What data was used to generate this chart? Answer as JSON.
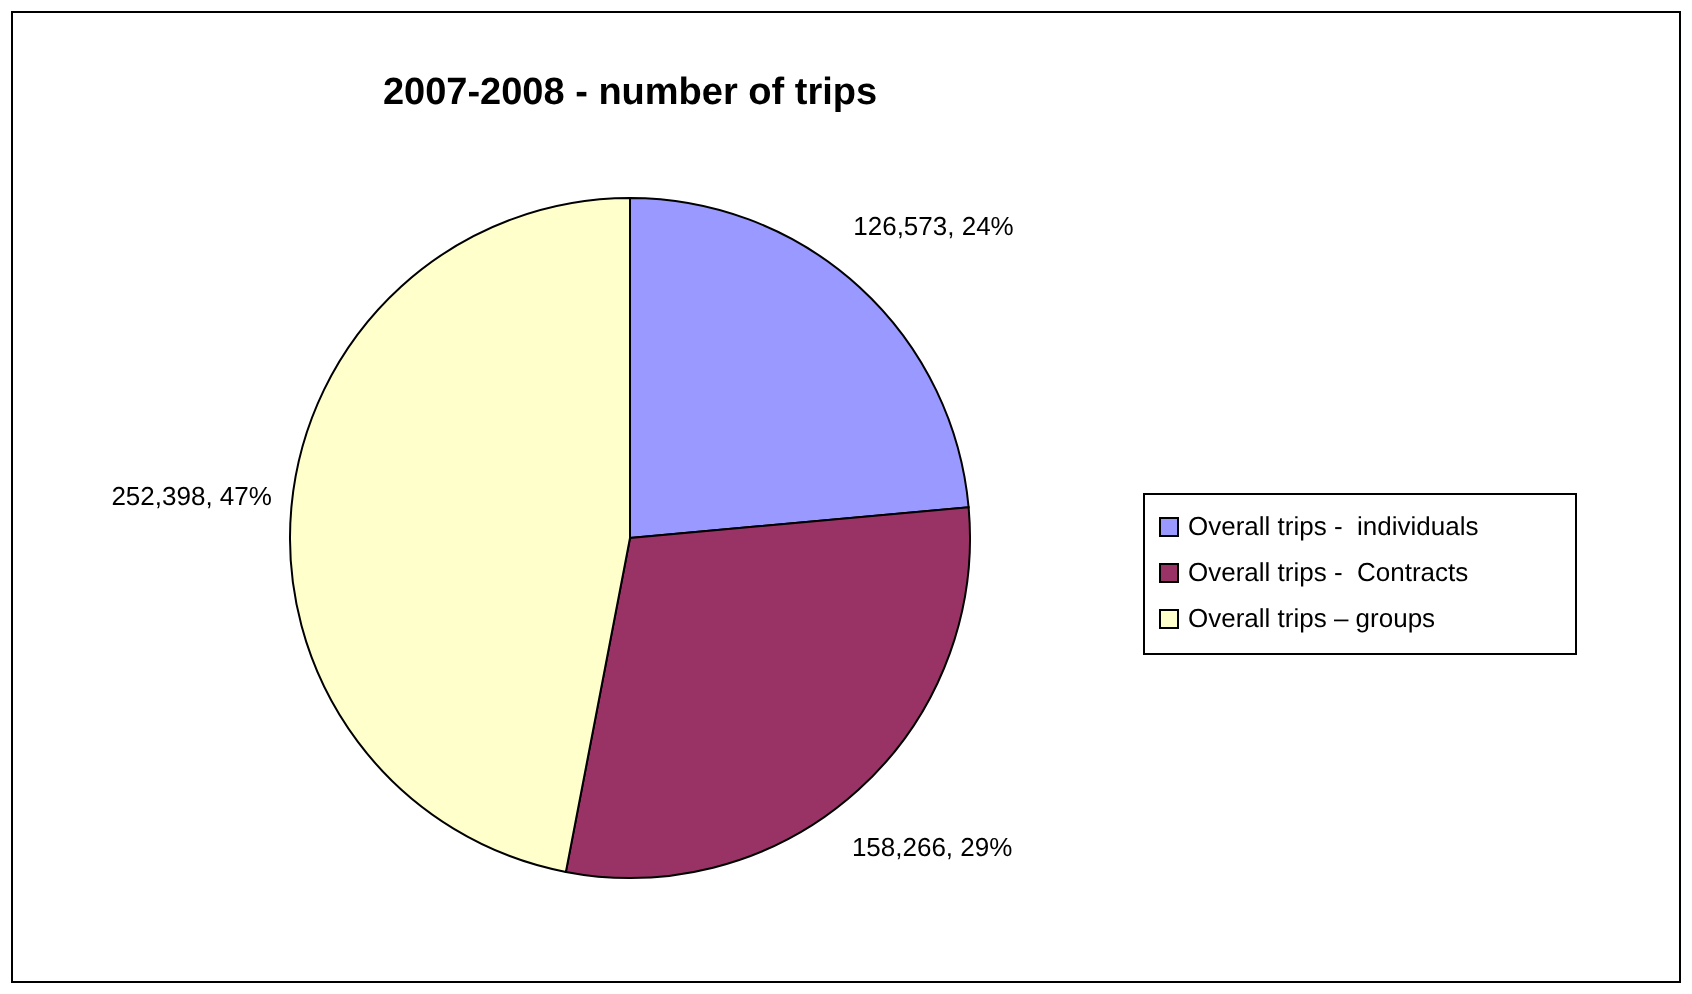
{
  "chart_data": {
    "type": "pie",
    "title": "2007-2008 - number of trips",
    "categories": [
      "Overall trips -  individuals",
      "Overall trips -  Contracts",
      "Overall trips – groups"
    ],
    "values": [
      126573,
      158266,
      252398
    ],
    "colors": [
      "#9999ff",
      "#993366",
      "#ffffcc"
    ],
    "value_labels": [
      "126,573, 24%",
      "158,266, 29%",
      "252,398, 47%"
    ],
    "legend": "right"
  }
}
